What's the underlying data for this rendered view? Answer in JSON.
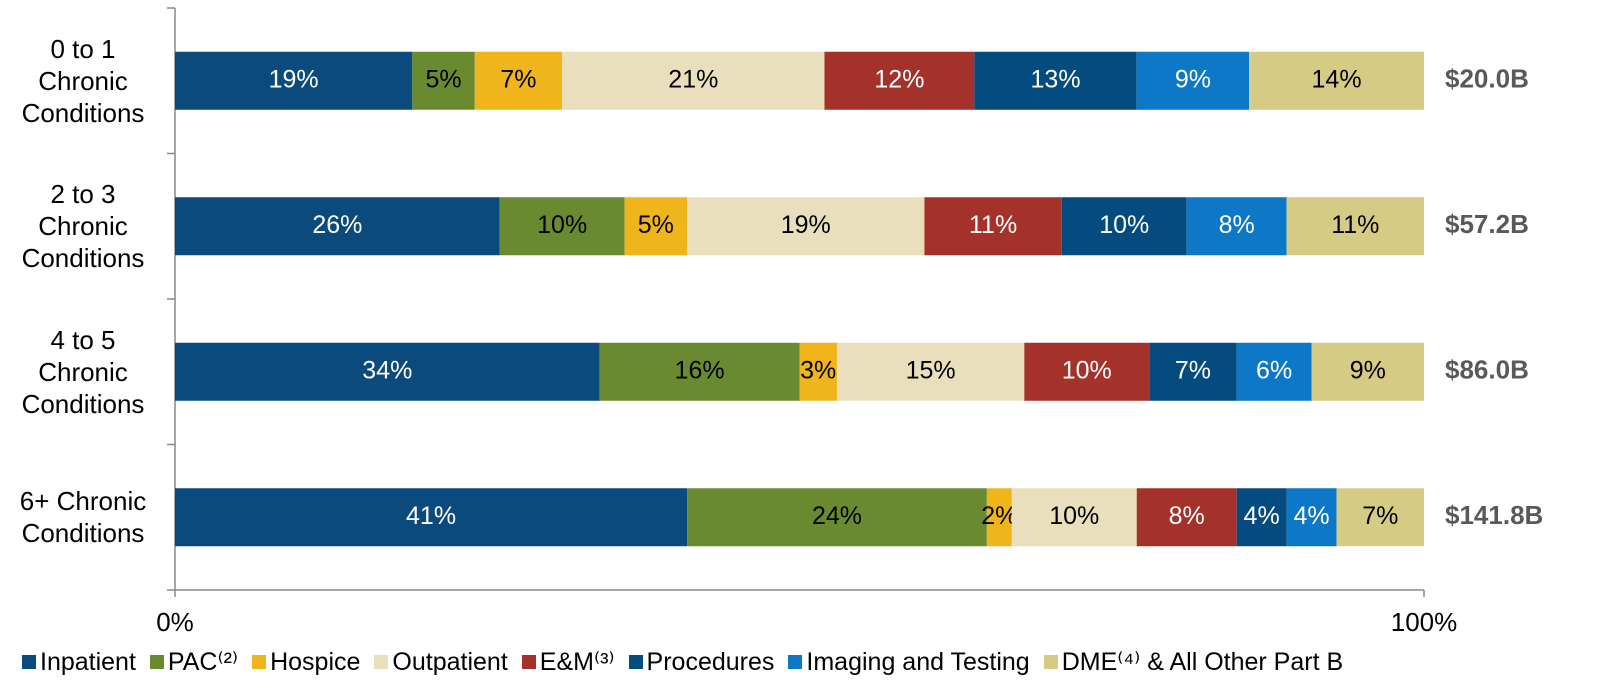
{
  "chart_data": {
    "type": "stacked-bar-horizontal",
    "categories": [
      "0 to 1 Chronic Conditions",
      "2 to 3 Chronic Conditions",
      "4 to 5 Chronic Conditions",
      "6+ Chronic Conditions"
    ],
    "series": [
      {
        "name": "Inpatient",
        "color": "#0b4a7c",
        "label_color": "#ffffff",
        "values": [
          19,
          26,
          34,
          41
        ],
        "value_labels": [
          "19%",
          "26%",
          "34%",
          "41%"
        ]
      },
      {
        "name": "PAC⁽²⁾",
        "color": "#6a8a2f",
        "label_color": "#000000",
        "values": [
          5,
          10,
          16,
          24
        ],
        "value_labels": [
          "5%",
          "10%",
          "16%",
          "24%"
        ]
      },
      {
        "name": "Hospice",
        "color": "#f0b51b",
        "label_color": "#000000",
        "values": [
          7,
          5,
          3,
          2
        ],
        "value_labels": [
          "7%",
          "5%",
          "3%",
          "2%"
        ]
      },
      {
        "name": "Outpatient",
        "color": "#e9dfbc",
        "label_color": "#000000",
        "values": [
          21,
          19,
          15,
          10
        ],
        "value_labels": [
          "21%",
          "19%",
          "15%",
          "10%"
        ]
      },
      {
        "name": "E&M⁽³⁾",
        "color": "#a5322a",
        "label_color": "#ffffff",
        "values": [
          12,
          11,
          10,
          8
        ],
        "value_labels": [
          "12%",
          "11%",
          "10%",
          "8%"
        ]
      },
      {
        "name": "Procedures",
        "color": "#044c80",
        "label_color": "#ffffff",
        "values": [
          13,
          10,
          7,
          4
        ],
        "value_labels": [
          "13%",
          "10%",
          "7%",
          "4%"
        ]
      },
      {
        "name": "Imaging and Testing",
        "color": "#0d77c8",
        "label_color": "#ffffff",
        "values": [
          9,
          8,
          6,
          4
        ],
        "value_labels": [
          "9%",
          "8%",
          "6%",
          "4%"
        ]
      },
      {
        "name": "DME⁽⁴⁾ & All Other Part B",
        "color": "#d6cb84",
        "label_color": "#000000",
        "values": [
          14,
          11,
          9,
          7
        ],
        "value_labels": [
          "14%",
          "11%",
          "9%",
          "7%"
        ]
      }
    ],
    "totals": {
      "values": [
        20.0,
        57.2,
        86.0,
        141.8
      ],
      "value_labels": [
        "$20.0B",
        "$57.2B",
        "$86.0B",
        "$141.8B"
      ],
      "color": "#595959"
    },
    "xlim": [
      0,
      100
    ],
    "xticks": [
      {
        "value": 0,
        "label": "0%"
      },
      {
        "value": 100,
        "label": "100%"
      }
    ],
    "legend": "bottom"
  }
}
